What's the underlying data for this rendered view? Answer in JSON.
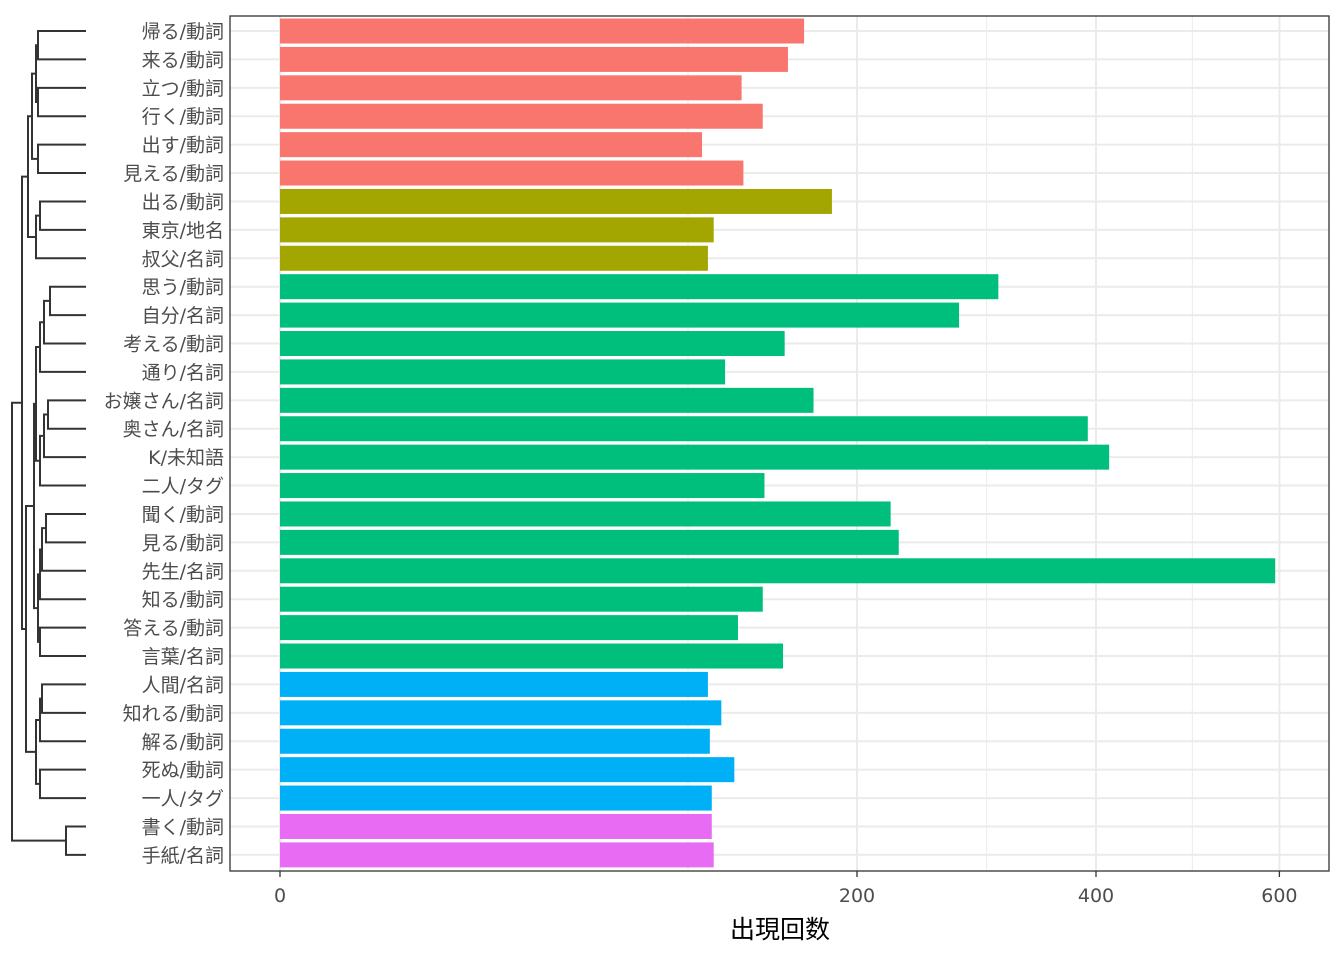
{
  "chart_data": {
    "type": "bar",
    "orientation": "horizontal",
    "categories": [
      "帰る/動詞",
      "来る/動詞",
      "立つ/動詞",
      "行く/動詞",
      "出す/動詞",
      "見える/動詞",
      "出る/動詞",
      "東京/地名",
      "叔父/名詞",
      "思う/動詞",
      "自分/名詞",
      "考える/動詞",
      "通り/名詞",
      "お嬢さん/名詞",
      "奥さん/名詞",
      "K/未知語",
      "二人/タグ",
      "聞く/動詞",
      "見る/動詞",
      "先生/名詞",
      "知る/動詞",
      "答える/動詞",
      "言葉/名詞",
      "人間/名詞",
      "知れる/動詞",
      "解る/動詞",
      "死ぬ/動詞",
      "一人/タグ",
      "書く/動詞",
      "手紙/名詞"
    ],
    "values": [
      165,
      155,
      128,
      140,
      107,
      129,
      183,
      113,
      110,
      310,
      277,
      153,
      119,
      171,
      392,
      413,
      141,
      224,
      230,
      595,
      140,
      126,
      152,
      110,
      117,
      111,
      124,
      112,
      112,
      113
    ],
    "groups": [
      1,
      1,
      1,
      1,
      1,
      1,
      2,
      2,
      2,
      3,
      3,
      3,
      3,
      3,
      3,
      3,
      3,
      3,
      3,
      3,
      3,
      3,
      3,
      4,
      4,
      4,
      4,
      4,
      5,
      5
    ],
    "group_colors": {
      "1": "#F8766D",
      "2": "#A3A500",
      "3": "#00BF7D",
      "4": "#00B0F6",
      "5": "#E76BF3"
    },
    "xlabel": "出現回数",
    "ylabel": "",
    "xlim": [
      0,
      600
    ],
    "x_scale": "sqrt",
    "x_ticks": [
      0,
      200,
      400,
      600
    ],
    "x_minor_ticks": [
      100,
      300,
      500
    ],
    "grid": true,
    "legend": "none",
    "dendrogram": true
  }
}
